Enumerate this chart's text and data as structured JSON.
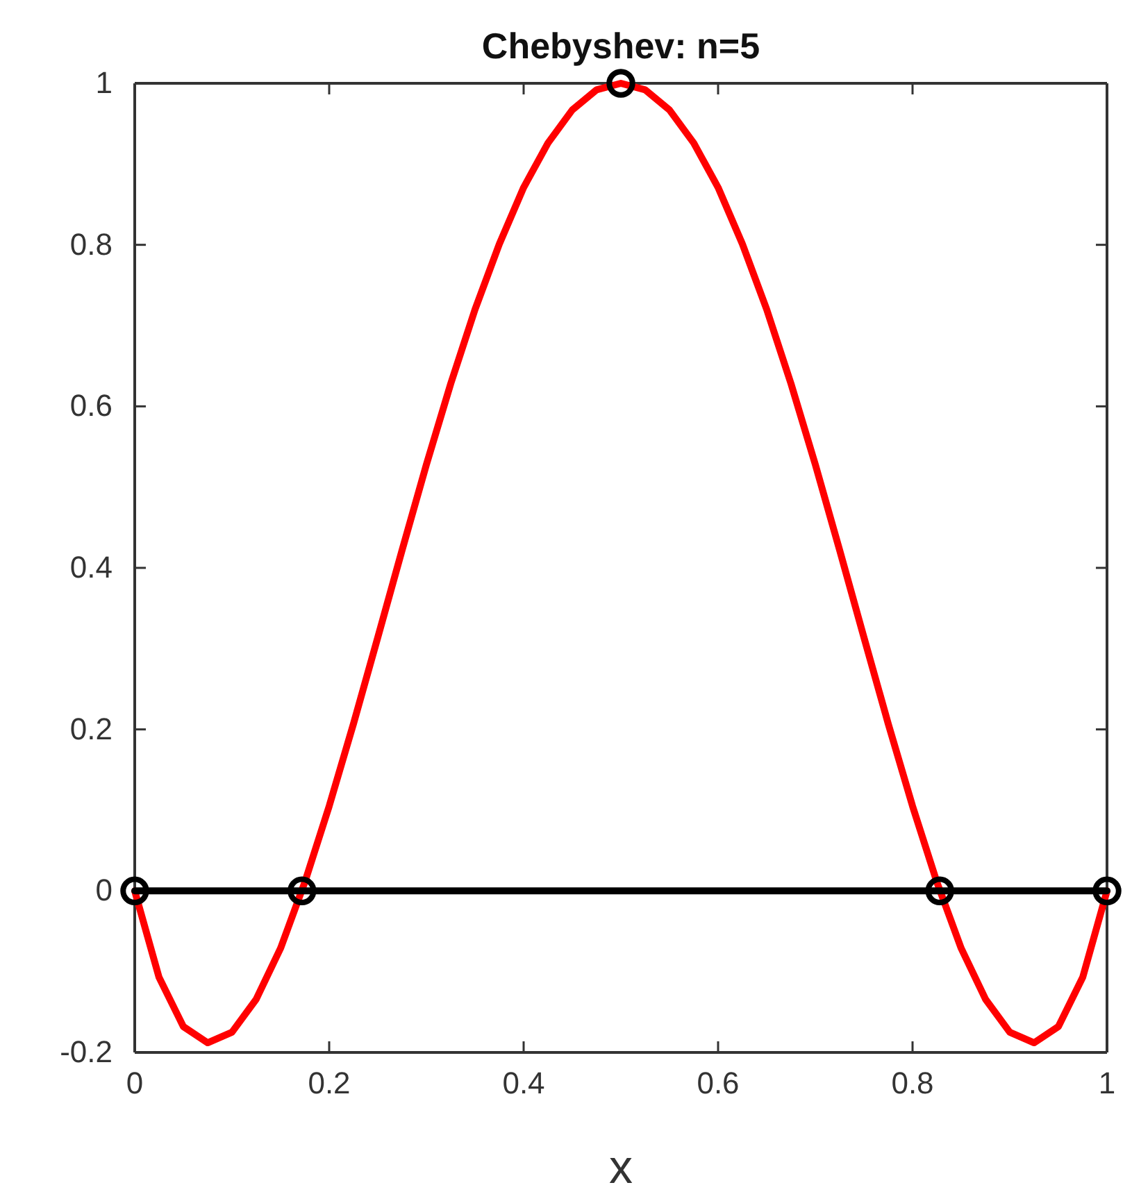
{
  "chart_data": {
    "type": "line",
    "title": "Chebyshev: n=5",
    "xlabel": "x",
    "xlim": [
      0,
      1
    ],
    "ylim": [
      -0.2,
      1
    ],
    "xticks": [
      0,
      0.2,
      0.4,
      0.6,
      0.8,
      1
    ],
    "yticks": [
      -0.2,
      0,
      0.2,
      0.4,
      0.6,
      0.8,
      1
    ],
    "grid": false,
    "line_style": "solid",
    "series": [
      {
        "color": "#ff0000",
        "x": [
          0,
          0.025,
          0.05,
          0.075,
          0.1,
          0.125,
          0.15,
          0.175,
          0.2,
          0.225,
          0.25,
          0.275,
          0.3,
          0.325,
          0.35,
          0.375,
          0.4,
          0.425,
          0.45,
          0.475,
          0.5,
          0.525,
          0.55,
          0.575,
          0.6,
          0.625,
          0.65,
          0.675,
          0.7,
          0.725,
          0.75,
          0.775,
          0.8,
          0.825,
          0.85,
          0.875,
          0.9,
          0.925,
          0.95,
          0.975,
          1
        ],
        "values": [
          0,
          -0.107,
          -0.168,
          -0.188,
          -0.175,
          -0.134,
          -0.071,
          0.011,
          0.105,
          0.207,
          0.314,
          0.422,
          0.528,
          0.628,
          0.72,
          0.801,
          0.871,
          0.926,
          0.967,
          0.992,
          1,
          0.992,
          0.967,
          0.926,
          0.871,
          0.801,
          0.72,
          0.628,
          0.528,
          0.422,
          0.314,
          0.207,
          0.105,
          0.011,
          -0.071,
          -0.134,
          -0.175,
          -0.188,
          -0.168,
          -0.107,
          0
        ]
      },
      {
        "color": "#000000",
        "x": [
          0,
          1
        ],
        "values": [
          0,
          0
        ]
      },
      {
        "type": "scatter",
        "marker": "circle",
        "color": "#000000",
        "x": [
          0,
          0.172,
          0.5,
          0.828,
          1
        ],
        "values": [
          0,
          0,
          1,
          0,
          0
        ]
      }
    ]
  }
}
